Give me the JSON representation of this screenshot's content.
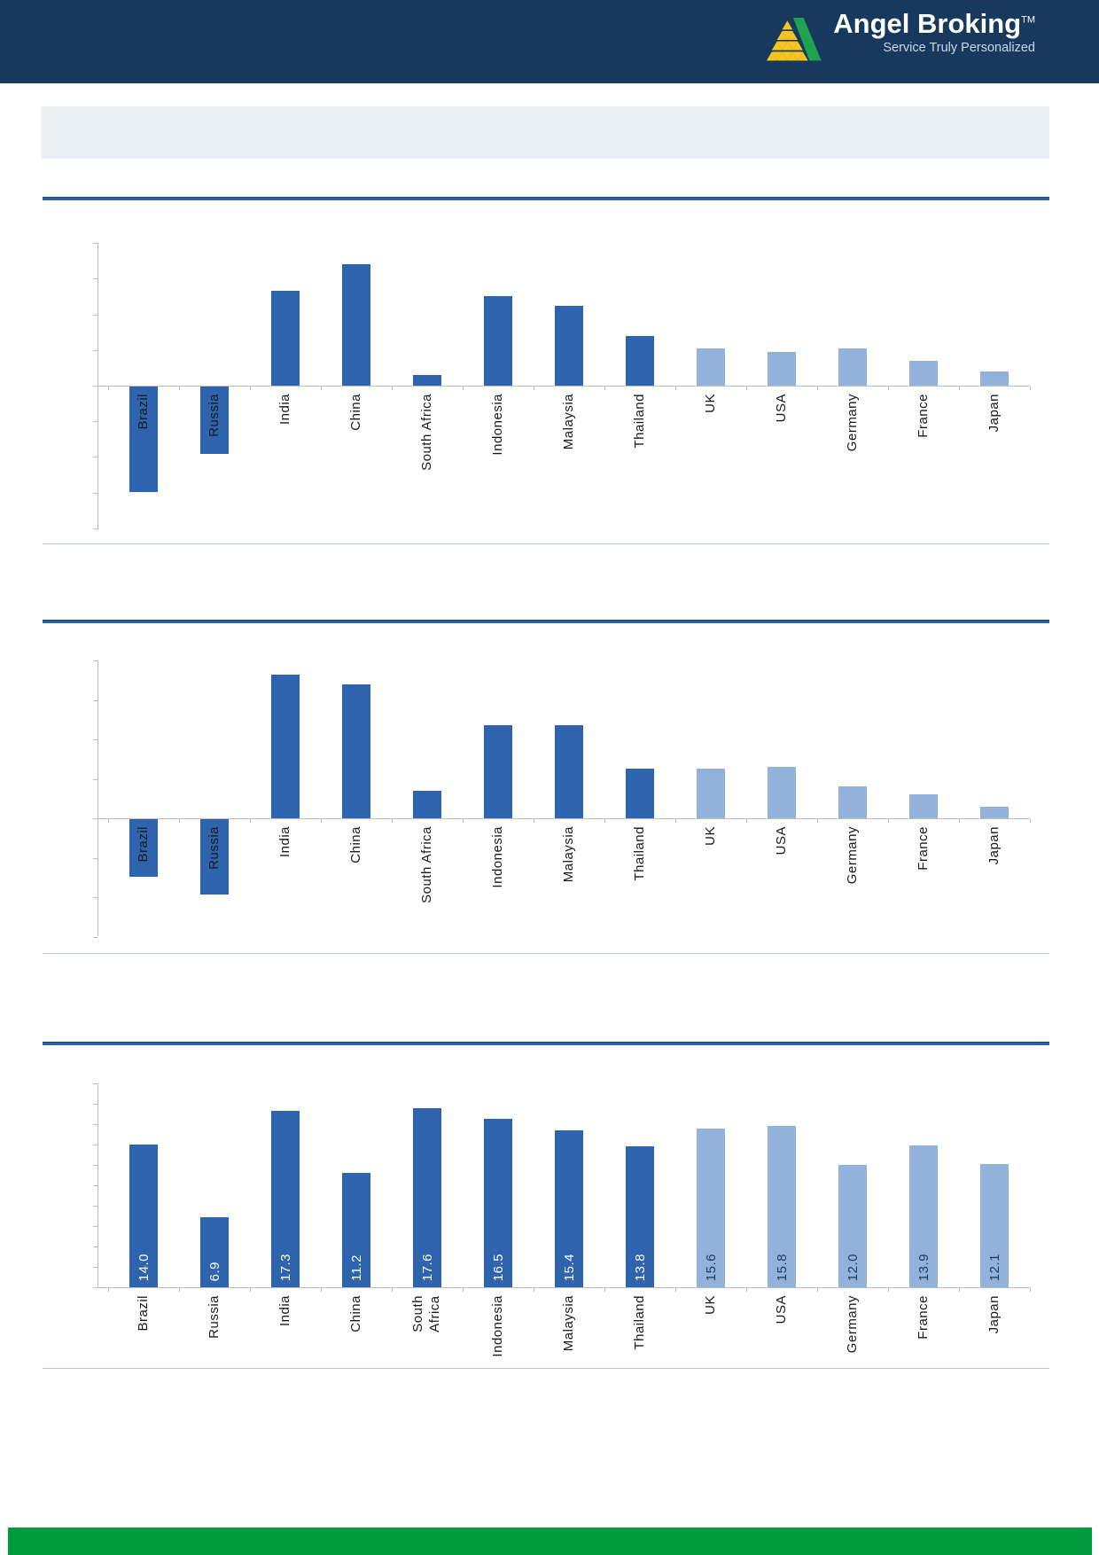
{
  "header": {
    "brand": "Angel Broking",
    "tm": "TM",
    "tagline": "Service Truly Personalized"
  },
  "banner_text": "",
  "colors": {
    "header_navy": "#17395e",
    "banner_bg": "#e9eef3",
    "divider_blue": "#2a62ac",
    "thin_line_blue": "#aec8e2",
    "footer_green": "#009b3c",
    "axis_gray": "#bfbfbf",
    "bar_dark": "#2e64ae",
    "bar_light": "#92b1db",
    "value_label_on_dark": "#ffffff",
    "value_label_on_light": "#1f3a5c",
    "logo_yellow": "#f7c51e",
    "logo_green": "#21a24e",
    "category_label": "#1a1a1a"
  },
  "chart_data": [
    {
      "type": "bar",
      "title": "",
      "categories": [
        "Brazil",
        "Russia",
        "India",
        "China",
        "South Africa",
        "Indonesia",
        "Malaysia",
        "Thailand",
        "UK",
        "USA",
        "Germany",
        "France",
        "Japan"
      ],
      "values": [
        -5.9,
        -3.8,
        5.3,
        6.8,
        0.6,
        5.0,
        4.5,
        2.8,
        2.1,
        1.9,
        2.1,
        1.4,
        0.8
      ],
      "bar_colors": [
        "#2e64ae",
        "#2e64ae",
        "#2e64ae",
        "#2e64ae",
        "#2e64ae",
        "#2e64ae",
        "#2e64ae",
        "#2e64ae",
        "#92b1db",
        "#92b1db",
        "#92b1db",
        "#92b1db",
        "#92b1db"
      ],
      "xlabel": "",
      "ylabel": "",
      "ylim": [
        -8,
        8
      ],
      "ytick_step": 2,
      "axis_tick_labels_shown": false,
      "grid": false,
      "legend": false,
      "value_labels": null
    },
    {
      "type": "bar",
      "title": "",
      "categories": [
        "Brazil",
        "Russia",
        "India",
        "China",
        "South Africa",
        "Indonesia",
        "Malaysia",
        "Thailand",
        "UK",
        "USA",
        "Germany",
        "France",
        "Japan"
      ],
      "values": [
        -2.9,
        -3.8,
        7.3,
        6.8,
        1.4,
        4.7,
        4.7,
        2.5,
        2.5,
        2.6,
        1.6,
        1.2,
        0.6
      ],
      "bar_colors": [
        "#2e64ae",
        "#2e64ae",
        "#2e64ae",
        "#2e64ae",
        "#2e64ae",
        "#2e64ae",
        "#2e64ae",
        "#2e64ae",
        "#92b1db",
        "#92b1db",
        "#92b1db",
        "#92b1db",
        "#92b1db"
      ],
      "xlabel": "",
      "ylabel": "",
      "ylim": [
        -6,
        8
      ],
      "ytick_step": 2,
      "axis_tick_labels_shown": false,
      "grid": false,
      "legend": false,
      "value_labels": null
    },
    {
      "type": "bar",
      "title": "",
      "categories": [
        "Brazil",
        "Russia",
        "India",
        "China",
        "South\nAfrica",
        "Indonesia",
        "Malaysia",
        "Thailand",
        "UK",
        "USA",
        "Germany",
        "France",
        "Japan"
      ],
      "values": [
        14.0,
        6.9,
        17.3,
        11.2,
        17.6,
        16.5,
        15.4,
        13.8,
        15.6,
        15.8,
        12.0,
        13.9,
        12.1
      ],
      "bar_colors": [
        "#2e64ae",
        "#2e64ae",
        "#2e64ae",
        "#2e64ae",
        "#2e64ae",
        "#2e64ae",
        "#2e64ae",
        "#2e64ae",
        "#92b1db",
        "#92b1db",
        "#92b1db",
        "#92b1db",
        "#92b1db"
      ],
      "xlabel": "",
      "ylabel": "",
      "ylim": [
        0,
        20
      ],
      "ytick_step": 2,
      "axis_tick_labels_shown": false,
      "grid": false,
      "legend": false,
      "value_labels": [
        "14.0",
        "6.9",
        "17.3",
        "11.2",
        "17.6",
        "16.5",
        "15.4",
        "13.8",
        "15.6",
        "15.8",
        "12.0",
        "13.9",
        "12.1"
      ]
    }
  ]
}
